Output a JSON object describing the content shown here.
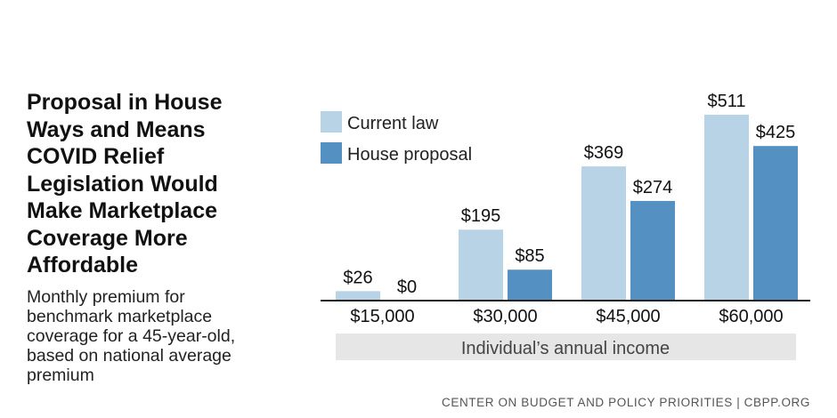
{
  "title": "Proposal in House Ways and Means COVID Relief Legislation Would Make Marketplace Coverage More Affordable",
  "subtitle": "Monthly premium for benchmark marketplace coverage for a 45-year-old, based on national average premium",
  "source": "CENTER ON BUDGET AND POLICY PRIORITIES | CBPP.ORG",
  "colors": {
    "current_law": "#b8d2e6",
    "house_proposal": "#5490c1",
    "axis_band": "#e6e6e6"
  },
  "chart_data": {
    "type": "bar",
    "xlabel": "Individual’s annual income",
    "ylabel": "",
    "categories": [
      "$15,000",
      "$30,000",
      "$45,000",
      "$60,000"
    ],
    "series": [
      {
        "name": "Current law",
        "values": [
          26,
          195,
          369,
          511
        ],
        "labels": [
          "$26",
          "$195",
          "$369",
          "$511"
        ]
      },
      {
        "name": "House proposal",
        "values": [
          0,
          85,
          274,
          425
        ],
        "labels": [
          "$0",
          "$85",
          "$274",
          "$425"
        ]
      }
    ],
    "ylim": [
      0,
      511
    ],
    "grid": false,
    "legend": "top-left"
  }
}
